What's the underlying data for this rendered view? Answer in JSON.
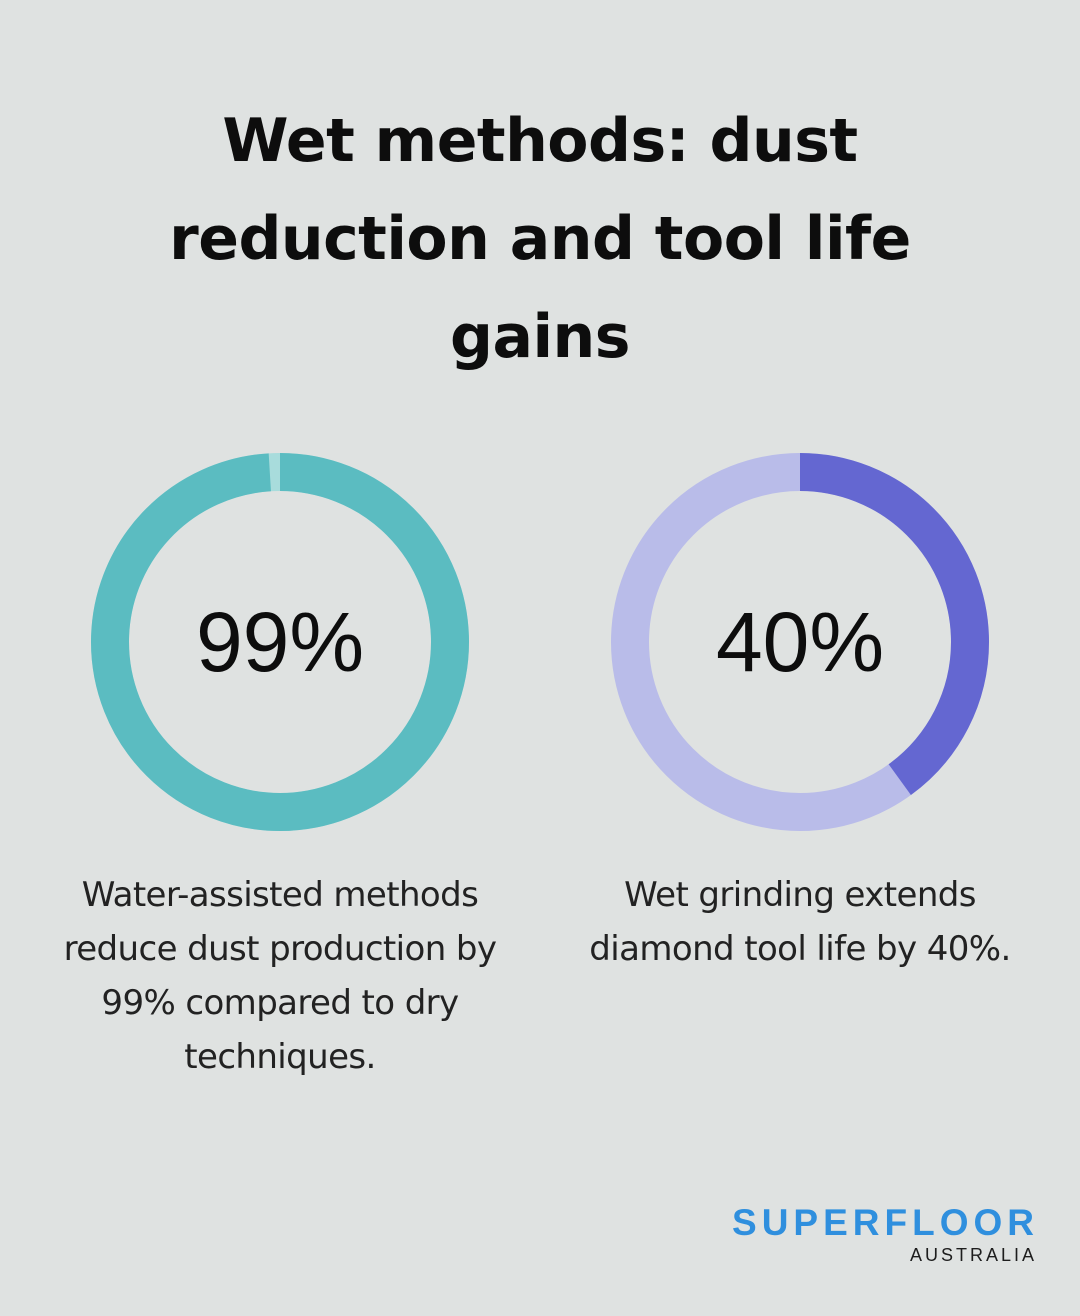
{
  "title": "Wet methods: dust reduction and tool life gains",
  "chart_data": [
    {
      "type": "pie",
      "variant": "donut",
      "values": [
        99,
        1
      ],
      "center_label": "99%",
      "description": "Water-assisted methods reduce dust production by 99% compared to dry techniques.",
      "colors": {
        "fill": "#5bbcc1",
        "track": "#a8dcdc"
      }
    },
    {
      "type": "pie",
      "variant": "donut",
      "values": [
        40,
        60
      ],
      "center_label": "40%",
      "description": "Wet grinding extends diamond tool life by 40%.",
      "colors": {
        "fill": "#6467d1",
        "track": "#b9bce9"
      }
    }
  ],
  "brand": {
    "name": "SUPERFLOOR",
    "sub": "AUSTRALIA",
    "color": "#2f8fde"
  }
}
